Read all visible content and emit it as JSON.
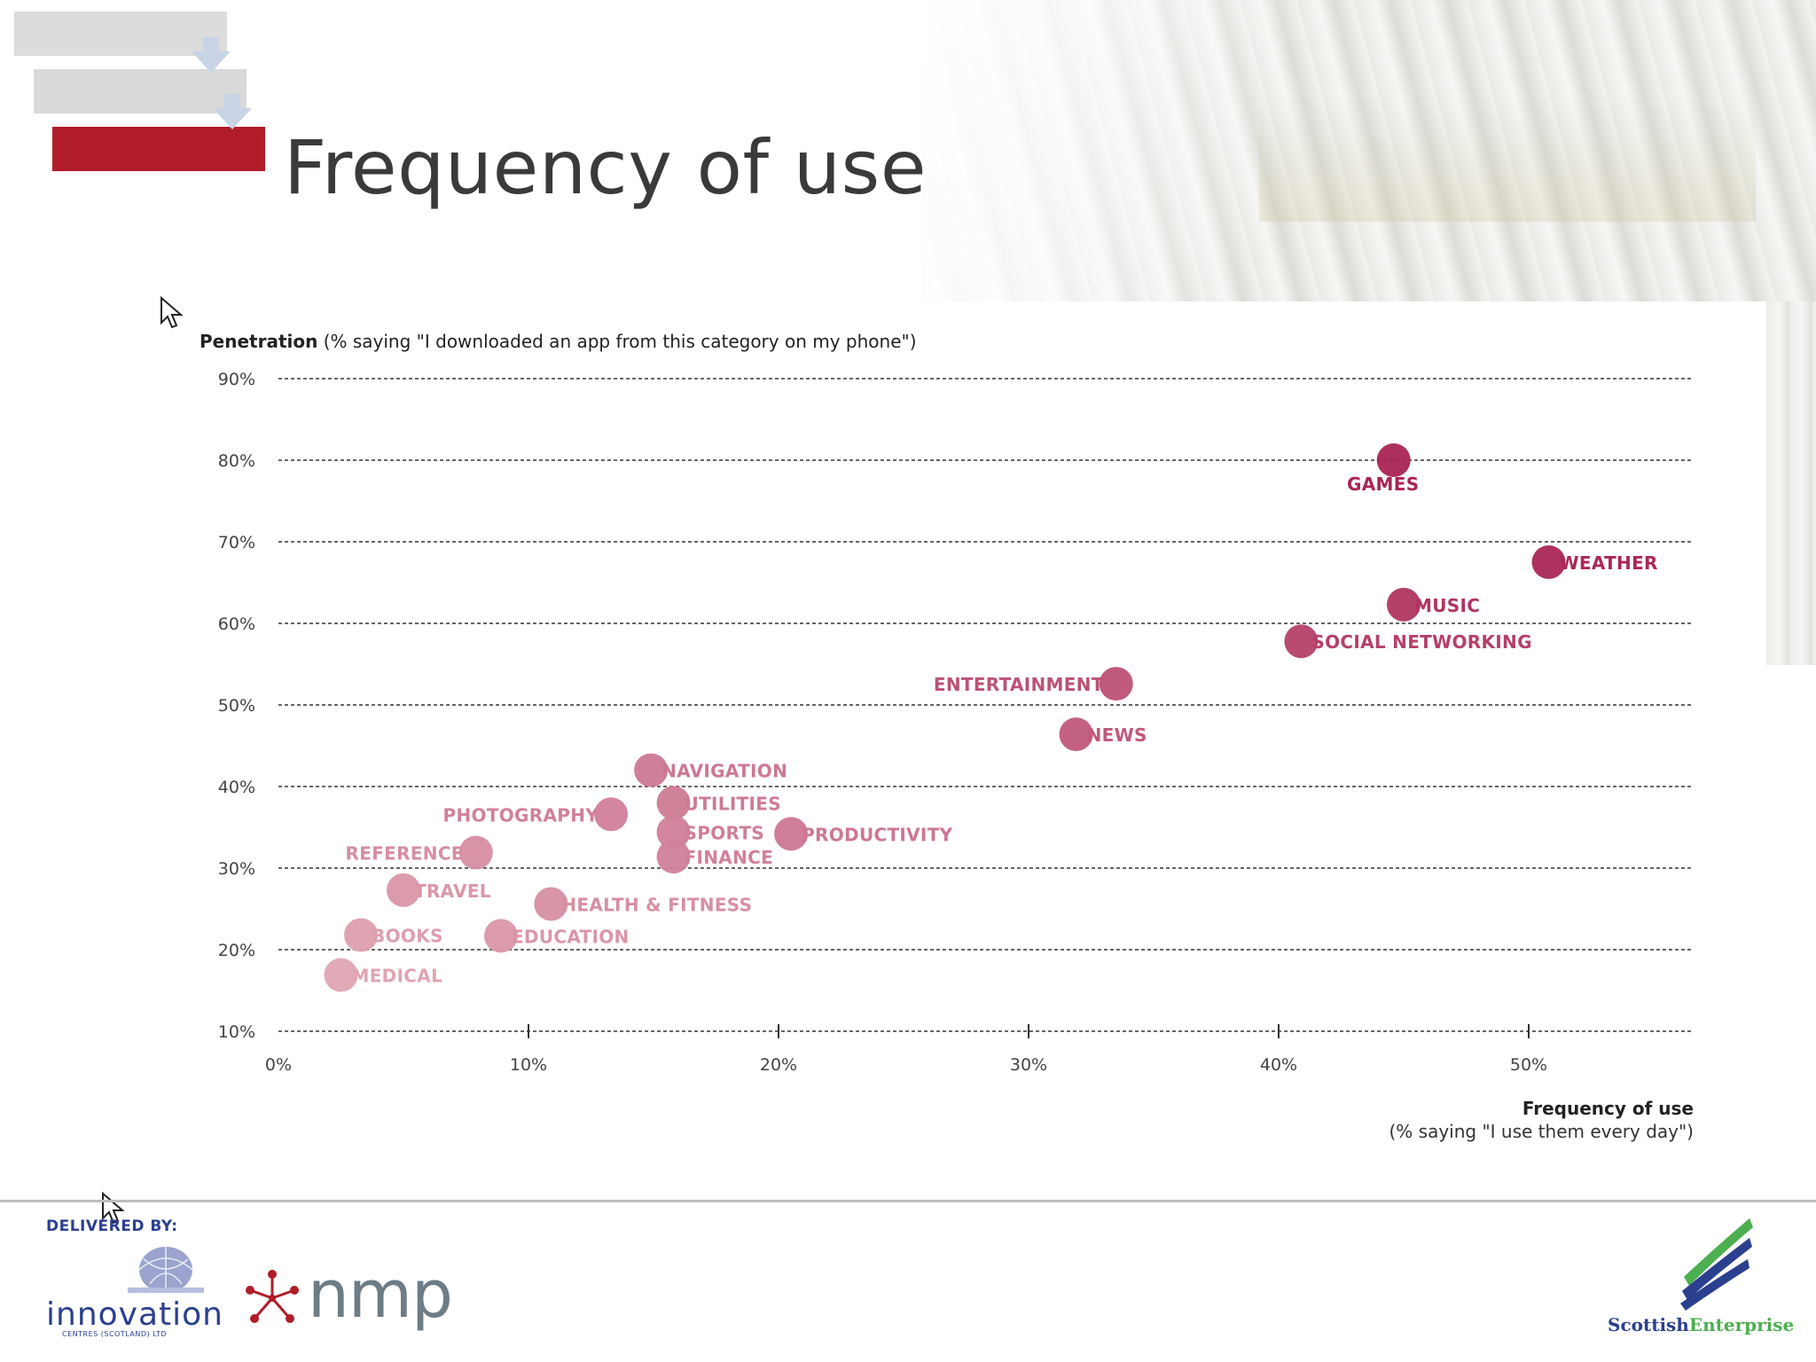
{
  "slide": {
    "title": "Frequency of use"
  },
  "footer": {
    "delivered_by": "DELIVERED BY:",
    "logos": {
      "innovation_word": "innovation",
      "innovation_sub": "CENTRES (SCOTLAND) LTD",
      "nmp_word": "nmp",
      "scottish_enterprise_1": "Scottish",
      "scottish_enterprise_2": "Enterprise"
    }
  },
  "colors": {
    "title": "#3a3a3a",
    "accent_red": "#b01c28",
    "marker_dark": "#a51c4f",
    "marker_light": "#e3aab7",
    "footer_blue": "#2b3f8f",
    "footer_green": "#4caf50"
  },
  "chart_data": {
    "type": "scatter",
    "title": "",
    "ylabel_bold": "Penetration",
    "ylabel_rest": " (% saying \"I downloaded an app from this category on my phone\")",
    "xlabel_bold": "Frequency of use",
    "xlabel_rest": "(% saying \"I use them every day\")",
    "xlim": [
      0,
      56
    ],
    "ylim": [
      10,
      90
    ],
    "xticks": [
      0,
      10,
      20,
      30,
      40,
      50
    ],
    "xtick_labels": [
      "0%",
      "10%",
      "20%",
      "30%",
      "40%",
      "50%"
    ],
    "yticks": [
      10,
      20,
      30,
      40,
      50,
      60,
      70,
      80,
      90
    ],
    "ytick_labels": [
      "10%",
      "20%",
      "30%",
      "40%",
      "50%",
      "60%",
      "70%",
      "80%",
      "90%"
    ],
    "grid": "horizontal-dashed",
    "points": [
      {
        "label": "GAMES",
        "x": 44.6,
        "y": 80,
        "label_pos": "below"
      },
      {
        "label": "WEATHER",
        "x": 50.8,
        "y": 67.5,
        "label_pos": "right"
      },
      {
        "label": "MUSIC",
        "x": 45.0,
        "y": 62.3,
        "label_pos": "right"
      },
      {
        "label": "SOCIAL NETWORKING",
        "x": 40.9,
        "y": 57.8,
        "label_pos": "right"
      },
      {
        "label": "ENTERTAINMENT",
        "x": 33.5,
        "y": 52.6,
        "label_pos": "left"
      },
      {
        "label": "NEWS",
        "x": 31.9,
        "y": 46.4,
        "label_pos": "right"
      },
      {
        "label": "NAVIGATION",
        "x": 14.9,
        "y": 42.0,
        "label_pos": "right"
      },
      {
        "label": "UTILITIES",
        "x": 15.8,
        "y": 38.0,
        "label_pos": "right"
      },
      {
        "label": "PHOTOGRAPHY",
        "x": 13.3,
        "y": 36.6,
        "label_pos": "left"
      },
      {
        "label": "SPORTS",
        "x": 15.8,
        "y": 34.4,
        "label_pos": "right"
      },
      {
        "label": "PRODUCTIVITY",
        "x": 20.5,
        "y": 34.2,
        "label_pos": "right"
      },
      {
        "label": "FINANCE",
        "x": 15.8,
        "y": 31.4,
        "label_pos": "right"
      },
      {
        "label": "REFERENCE",
        "x": 7.9,
        "y": 31.9,
        "label_pos": "left"
      },
      {
        "label": "TRAVEL",
        "x": 5.0,
        "y": 27.3,
        "label_pos": "right"
      },
      {
        "label": "HEALTH & FITNESS",
        "x": 10.9,
        "y": 25.6,
        "label_pos": "right"
      },
      {
        "label": "BOOKS",
        "x": 3.3,
        "y": 21.8,
        "label_pos": "right"
      },
      {
        "label": "EDUCATION",
        "x": 8.9,
        "y": 21.7,
        "label_pos": "right"
      },
      {
        "label": "MEDICAL",
        "x": 2.5,
        "y": 16.9,
        "label_pos": "right"
      }
    ]
  }
}
